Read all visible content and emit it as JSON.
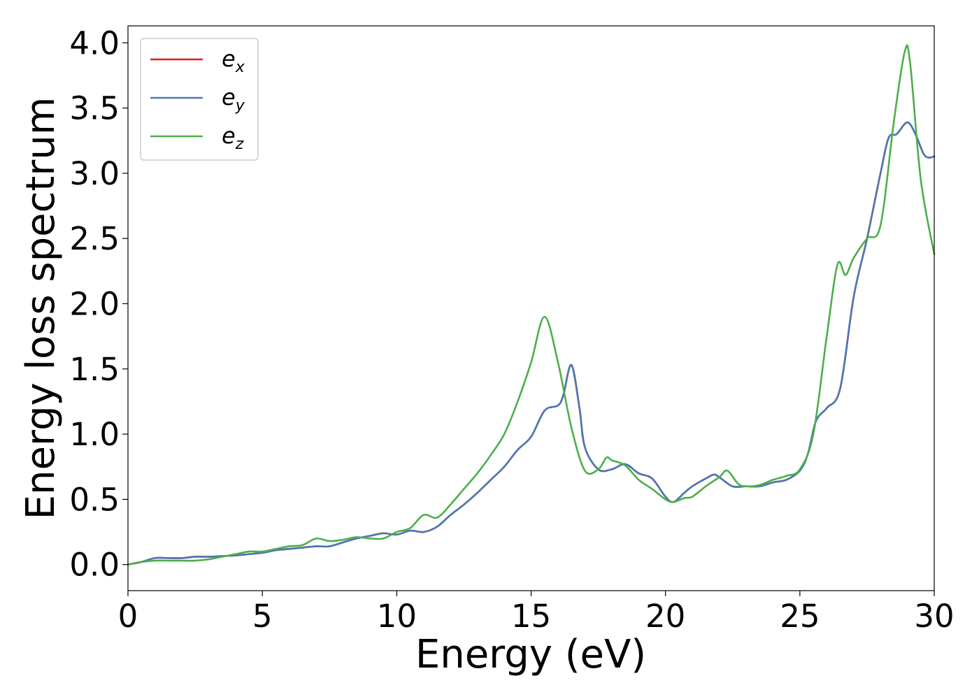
{
  "chart_data": {
    "type": "line",
    "title": "",
    "xlabel": "Energy (eV)",
    "ylabel": "Energy loss spectrum",
    "xlim": [
      0,
      30
    ],
    "ylim": [
      -0.2,
      4.13
    ],
    "xticks": [
      0,
      5,
      10,
      15,
      20,
      25,
      30
    ],
    "xtick_labels": [
      "0",
      "5",
      "10",
      "15",
      "20",
      "25",
      "30"
    ],
    "yticks": [
      0.0,
      0.5,
      1.0,
      1.5,
      2.0,
      2.5,
      3.0,
      3.5,
      4.0
    ],
    "ytick_labels": [
      "0.0",
      "0.5",
      "1.0",
      "1.5",
      "2.0",
      "2.5",
      "3.0",
      "3.5",
      "4.0"
    ],
    "grid": false,
    "legend_position": "top-left",
    "series": [
      {
        "name": "e",
        "subscript": "x",
        "color": "#e41a1c",
        "x": [
          0,
          0.5,
          1.0,
          1.5,
          2.0,
          2.5,
          3.0,
          3.5,
          4.0,
          4.5,
          5.0,
          5.5,
          6.0,
          6.5,
          7.0,
          7.5,
          8.0,
          8.5,
          9.0,
          9.5,
          10.0,
          10.5,
          11.0,
          11.5,
          12.0,
          12.5,
          13.0,
          13.5,
          14.0,
          14.5,
          15.0,
          15.5,
          16.0,
          16.2,
          16.5,
          16.8,
          17.0,
          17.5,
          18.0,
          18.5,
          19.0,
          19.5,
          20.0,
          20.3,
          20.7,
          21.0,
          21.5,
          21.8,
          22.0,
          22.5,
          23.0,
          23.5,
          24.0,
          24.5,
          25.0,
          25.3,
          25.6,
          26.0,
          26.5,
          27.0,
          27.5,
          28.0,
          28.3,
          28.6,
          29.0,
          29.3,
          29.6,
          29.8,
          30.0
        ],
        "y": [
          0.0,
          0.02,
          0.05,
          0.05,
          0.05,
          0.06,
          0.06,
          0.065,
          0.07,
          0.08,
          0.09,
          0.11,
          0.12,
          0.13,
          0.14,
          0.14,
          0.17,
          0.2,
          0.22,
          0.24,
          0.23,
          0.26,
          0.25,
          0.29,
          0.38,
          0.46,
          0.55,
          0.65,
          0.75,
          0.88,
          0.98,
          1.18,
          1.22,
          1.3,
          1.53,
          1.2,
          0.9,
          0.73,
          0.73,
          0.77,
          0.7,
          0.66,
          0.52,
          0.48,
          0.55,
          0.6,
          0.66,
          0.69,
          0.67,
          0.6,
          0.6,
          0.6,
          0.63,
          0.65,
          0.72,
          0.85,
          1.1,
          1.2,
          1.35,
          2.05,
          2.5,
          3.0,
          3.27,
          3.3,
          3.39,
          3.3,
          3.15,
          3.12,
          3.13
        ]
      },
      {
        "name": "e",
        "subscript": "y",
        "color": "#4a78b5",
        "x": [
          0,
          0.5,
          1.0,
          1.5,
          2.0,
          2.5,
          3.0,
          3.5,
          4.0,
          4.5,
          5.0,
          5.5,
          6.0,
          6.5,
          7.0,
          7.5,
          8.0,
          8.5,
          9.0,
          9.5,
          10.0,
          10.5,
          11.0,
          11.5,
          12.0,
          12.5,
          13.0,
          13.5,
          14.0,
          14.5,
          15.0,
          15.5,
          16.0,
          16.2,
          16.5,
          16.8,
          17.0,
          17.5,
          18.0,
          18.5,
          19.0,
          19.5,
          20.0,
          20.3,
          20.7,
          21.0,
          21.5,
          21.8,
          22.0,
          22.5,
          23.0,
          23.5,
          24.0,
          24.5,
          25.0,
          25.3,
          25.6,
          26.0,
          26.5,
          27.0,
          27.5,
          28.0,
          28.3,
          28.6,
          29.0,
          29.3,
          29.6,
          29.8,
          30.0
        ],
        "y": [
          0.0,
          0.02,
          0.05,
          0.05,
          0.05,
          0.06,
          0.06,
          0.065,
          0.07,
          0.08,
          0.09,
          0.11,
          0.12,
          0.13,
          0.14,
          0.14,
          0.17,
          0.2,
          0.22,
          0.24,
          0.23,
          0.26,
          0.25,
          0.29,
          0.38,
          0.46,
          0.55,
          0.65,
          0.75,
          0.88,
          0.98,
          1.18,
          1.22,
          1.3,
          1.53,
          1.2,
          0.9,
          0.73,
          0.73,
          0.77,
          0.7,
          0.66,
          0.52,
          0.48,
          0.55,
          0.6,
          0.66,
          0.69,
          0.67,
          0.6,
          0.6,
          0.6,
          0.63,
          0.65,
          0.72,
          0.85,
          1.1,
          1.2,
          1.35,
          2.05,
          2.5,
          3.0,
          3.27,
          3.3,
          3.39,
          3.3,
          3.15,
          3.12,
          3.13
        ]
      },
      {
        "name": "e",
        "subscript": "z",
        "color": "#4daf4a",
        "x": [
          0,
          0.5,
          1.0,
          1.5,
          2.0,
          2.5,
          3.0,
          3.5,
          4.0,
          4.5,
          5.0,
          5.5,
          6.0,
          6.5,
          7.0,
          7.5,
          8.0,
          8.5,
          9.0,
          9.5,
          10.0,
          10.5,
          11.0,
          11.5,
          12.0,
          12.5,
          13.0,
          13.5,
          14.0,
          14.5,
          15.0,
          15.5,
          16.0,
          16.5,
          17.0,
          17.5,
          17.8,
          18.0,
          18.5,
          19.0,
          19.5,
          20.0,
          20.3,
          20.7,
          21.0,
          21.5,
          22.0,
          22.3,
          22.7,
          23.0,
          23.5,
          24.0,
          24.5,
          25.0,
          25.5,
          26.0,
          26.4,
          26.7,
          27.0,
          27.5,
          28.0,
          28.5,
          28.9,
          29.1,
          29.5,
          30.0
        ],
        "y": [
          0.0,
          0.02,
          0.03,
          0.03,
          0.03,
          0.03,
          0.04,
          0.06,
          0.08,
          0.1,
          0.1,
          0.12,
          0.14,
          0.15,
          0.2,
          0.18,
          0.19,
          0.21,
          0.2,
          0.2,
          0.25,
          0.28,
          0.38,
          0.36,
          0.46,
          0.58,
          0.7,
          0.84,
          1.0,
          1.25,
          1.55,
          1.9,
          1.55,
          1.05,
          0.72,
          0.73,
          0.82,
          0.8,
          0.76,
          0.65,
          0.58,
          0.5,
          0.48,
          0.51,
          0.52,
          0.6,
          0.67,
          0.72,
          0.62,
          0.6,
          0.61,
          0.65,
          0.68,
          0.73,
          1.0,
          1.75,
          2.3,
          2.22,
          2.35,
          2.5,
          2.6,
          3.4,
          3.93,
          3.85,
          2.95,
          2.38
        ]
      }
    ]
  }
}
